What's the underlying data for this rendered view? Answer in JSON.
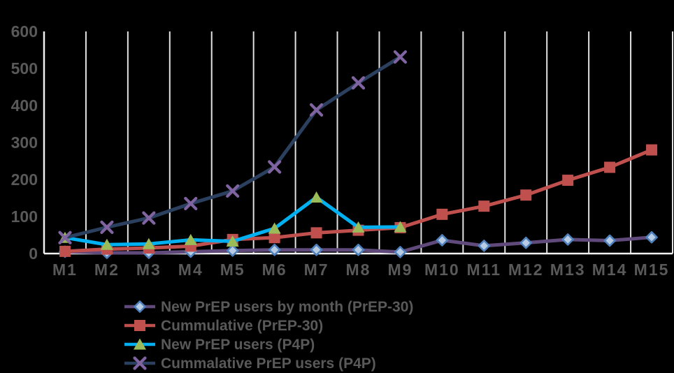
{
  "chart_data": {
    "type": "line",
    "title": "",
    "categories": [
      "M1",
      "M2",
      "M3",
      "M4",
      "M5",
      "M6",
      "M7",
      "M8",
      "M9",
      "M10",
      "M11",
      "M12",
      "M13",
      "M14",
      "M15"
    ],
    "y_ticks": [
      0,
      100,
      200,
      300,
      400,
      500,
      600
    ],
    "ylim": [
      0,
      600
    ],
    "grid": "vertical-only",
    "legend_position": "bottom-left",
    "colors": {
      "background": "#000000",
      "gridline": "#E2E2E2",
      "axis_line": "#F2F2F2",
      "axis_text": "#595959",
      "legend_text": "#595959"
    },
    "series": [
      {
        "name": "New PrEP users by month (PrEP-30)",
        "marker": "diamond",
        "line_color": "#604A7B",
        "marker_fill": "#B8CCE4",
        "marker_border": "#4F81BD",
        "values": [
          5,
          2,
          2,
          5,
          8,
          10,
          10,
          10,
          4,
          36,
          21,
          29,
          38,
          35,
          44
        ]
      },
      {
        "name": "Cummulative (PrEP-30)",
        "marker": "square",
        "line_color": "#C0504D",
        "marker_fill": "#C0504D",
        "marker_border": "#C0504D",
        "values": [
          6,
          12,
          15,
          20,
          38,
          43,
          56,
          63,
          70,
          106,
          128,
          158,
          198,
          233,
          280
        ]
      },
      {
        "name": "New PrEP users (P4P)",
        "marker": "triangle",
        "line_color": "#00B0F0",
        "marker_fill": "#9BBB59",
        "marker_border": "#9BBB59",
        "values": [
          43,
          24,
          26,
          37,
          33,
          68,
          152,
          71,
          72,
          null,
          null,
          null,
          null,
          null,
          null
        ]
      },
      {
        "name": "Cummalative PrEP users (P4P)",
        "marker": "x",
        "line_color": "#2B3F5E",
        "marker_fill": "#8064A2",
        "marker_border": "#8064A2",
        "values": [
          43,
          71,
          96,
          135,
          169,
          234,
          388,
          461,
          531,
          null,
          null,
          null,
          null,
          null,
          null
        ]
      }
    ]
  }
}
